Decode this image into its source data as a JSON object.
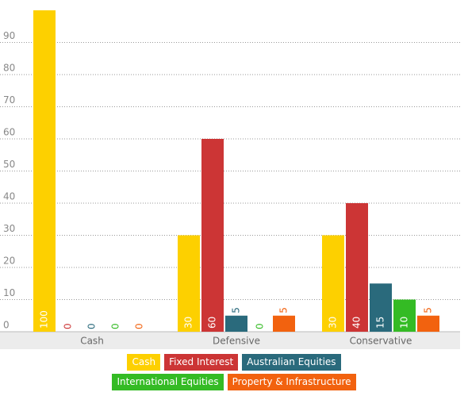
{
  "chart_data": {
    "type": "bar",
    "categories": [
      "Cash",
      "Defensive",
      "Conservative"
    ],
    "series": [
      {
        "name": "Cash",
        "color": "#fdd000",
        "values": [
          100,
          30,
          30
        ]
      },
      {
        "name": "Fixed Interest",
        "color": "#cc3535",
        "values": [
          0,
          60,
          40
        ]
      },
      {
        "name": "Australian Equities",
        "color": "#2a6a7c",
        "values": [
          0,
          5,
          15
        ]
      },
      {
        "name": "International Equities",
        "color": "#34bb24",
        "values": [
          0,
          0,
          10
        ]
      },
      {
        "name": "Property & Infrastructure",
        "color": "#f2620f",
        "values": [
          0,
          5,
          5
        ]
      }
    ],
    "ylim": [
      0,
      100
    ],
    "yticks": [
      0,
      10,
      20,
      30,
      40,
      50,
      60,
      70,
      80,
      90
    ],
    "grid": true
  }
}
